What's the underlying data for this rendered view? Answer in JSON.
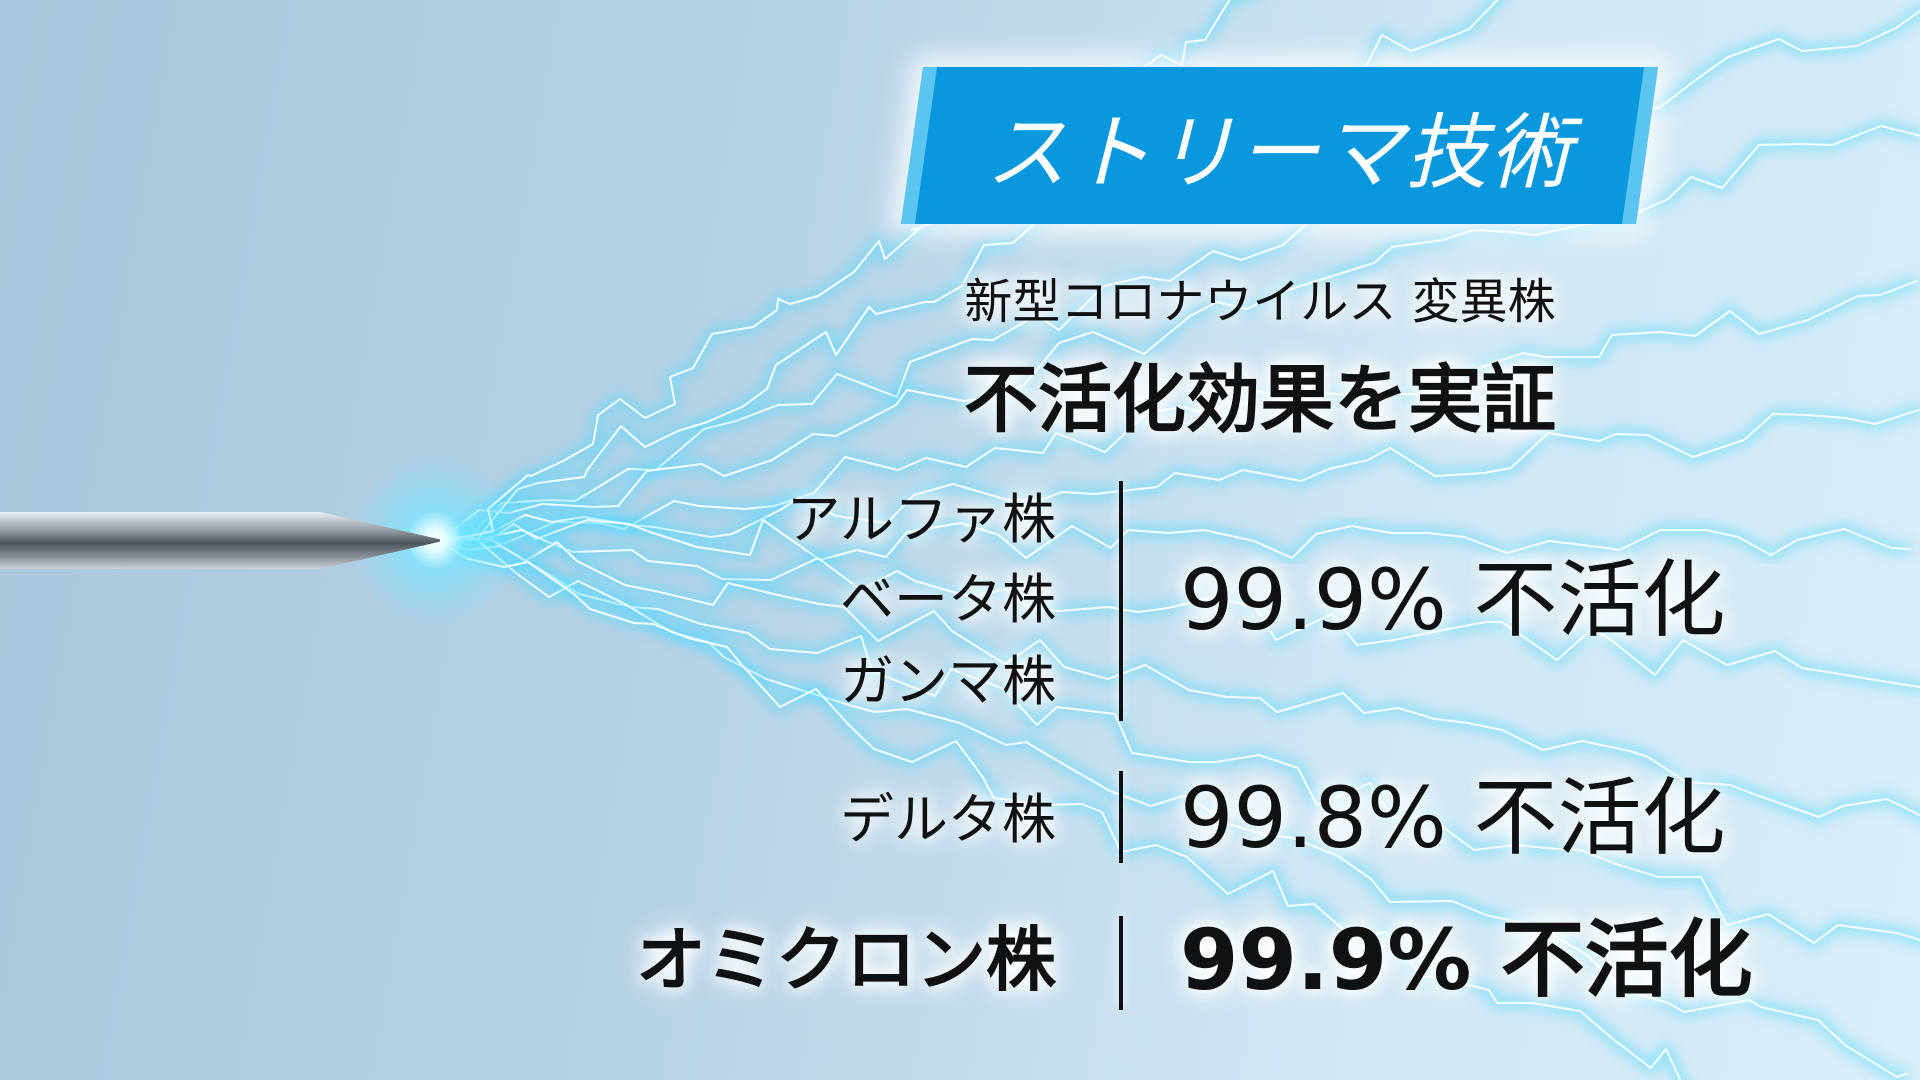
{
  "banner": {
    "title": "ストリーマ技術",
    "color": "#0998de"
  },
  "headline": {
    "subtitle": "新型コロナウイルス 変異株",
    "title": "不活化効果を実証"
  },
  "results": [
    {
      "strains": [
        "アルファ株",
        "ベータ株",
        "ガンマ株"
      ],
      "value": "99.9% 不活化"
    },
    {
      "strains": [
        "デルタ株"
      ],
      "value": "99.8% 不活化"
    },
    {
      "strains": [
        "オミクロン株"
      ],
      "value": "99.9% 不活化"
    }
  ],
  "colors": {
    "lightning": "#4fd8ff",
    "background": "#b7d3e6"
  }
}
